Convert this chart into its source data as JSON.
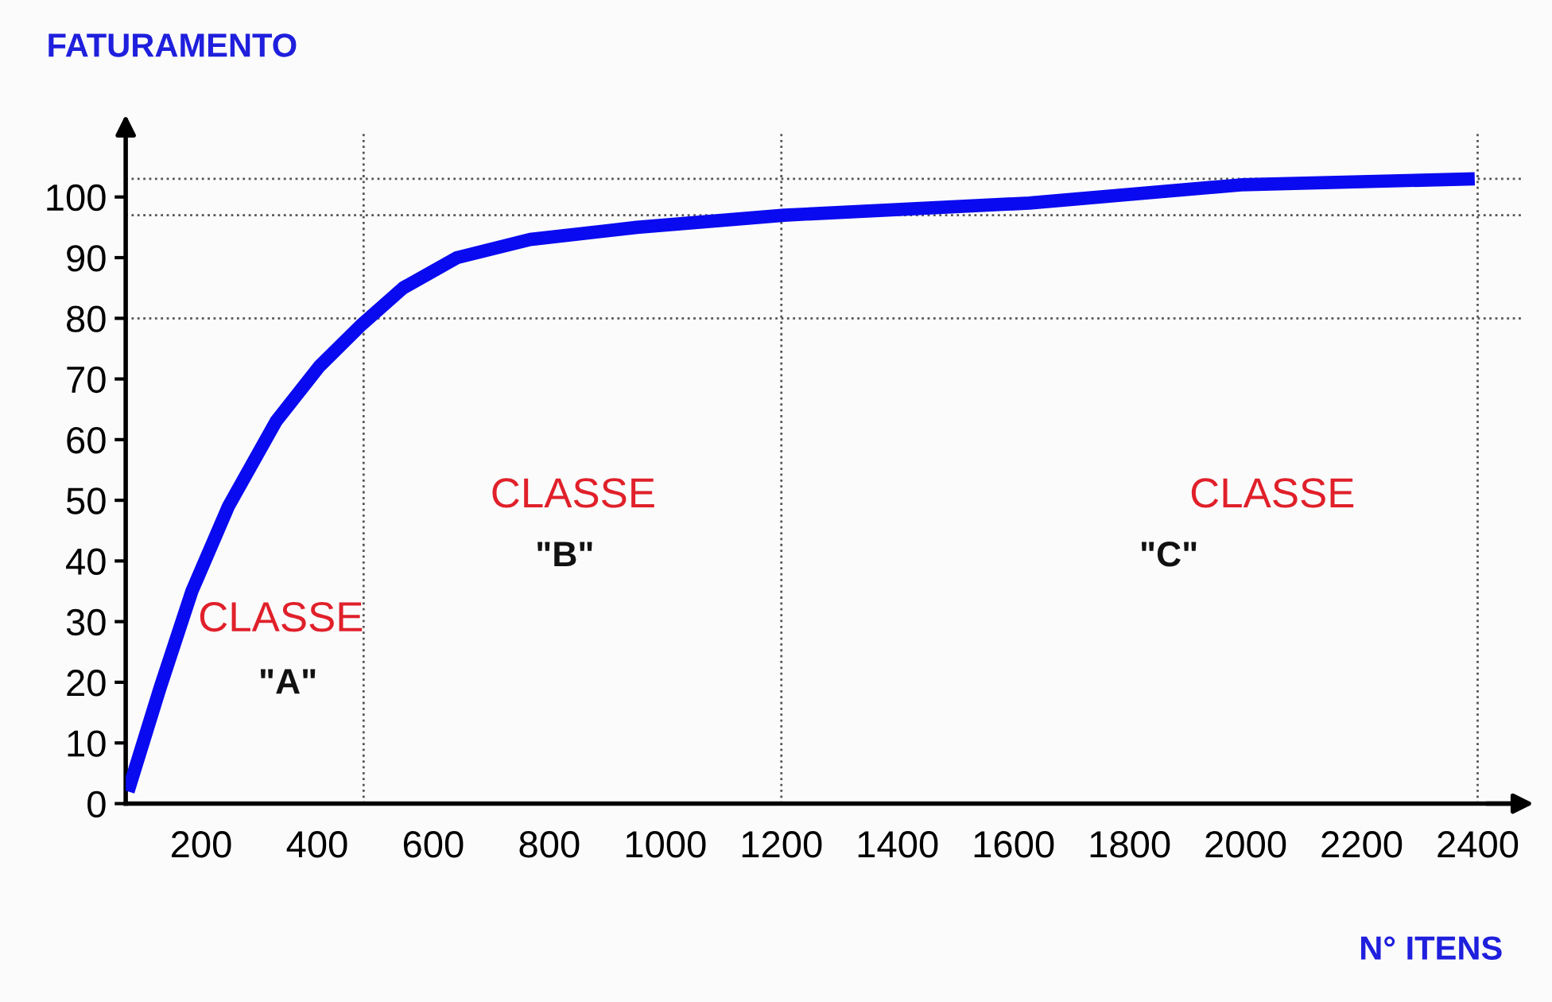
{
  "chart_data": {
    "type": "line",
    "title": "FATURAMENTO",
    "xlabel": "N° ITENS",
    "x": [
      74,
      129,
      184,
      247,
      329,
      403,
      477,
      548,
      641,
      767,
      951,
      1205,
      1627,
      1992,
      2395
    ],
    "series": [
      {
        "color": "#0a0af0",
        "values": [
          2,
          19,
          35,
          49,
          63,
          72,
          79,
          85,
          90,
          93,
          95,
          97,
          99,
          102,
          103
        ]
      }
    ],
    "xlim": [
      70,
      2480
    ],
    "ylim": [
      0,
      111
    ],
    "xticks": [
      200,
      400,
      600,
      800,
      1000,
      1200,
      1400,
      1600,
      1800,
      2000,
      2200,
      2400
    ],
    "yticks": [
      0,
      10,
      20,
      30,
      40,
      50,
      60,
      70,
      80,
      90,
      100
    ],
    "ref_lines": [
      {
        "axis": "y",
        "value": 80,
        "line_style": "dotted",
        "color": "#555555"
      },
      {
        "axis": "y",
        "value": 97,
        "line_style": "dotted",
        "color": "#555555"
      },
      {
        "axis": "y",
        "value": 103,
        "line_style": "dotted",
        "color": "#555555"
      },
      {
        "axis": "x",
        "value": 480,
        "line_style": "dotted",
        "color": "#555555"
      },
      {
        "axis": "x",
        "value": 1200,
        "line_style": "dotted",
        "color": "#555555"
      },
      {
        "axis": "x",
        "value": 2400,
        "line_style": "dotted",
        "color": "#555555"
      }
    ],
    "annotations": [
      "CLASSE",
      "\"A\"",
      "CLASSE",
      "\"B\"",
      "CLASSE",
      "\"C\""
    ],
    "grid": false,
    "legend": false,
    "marker": "none",
    "line_style": "solid"
  }
}
